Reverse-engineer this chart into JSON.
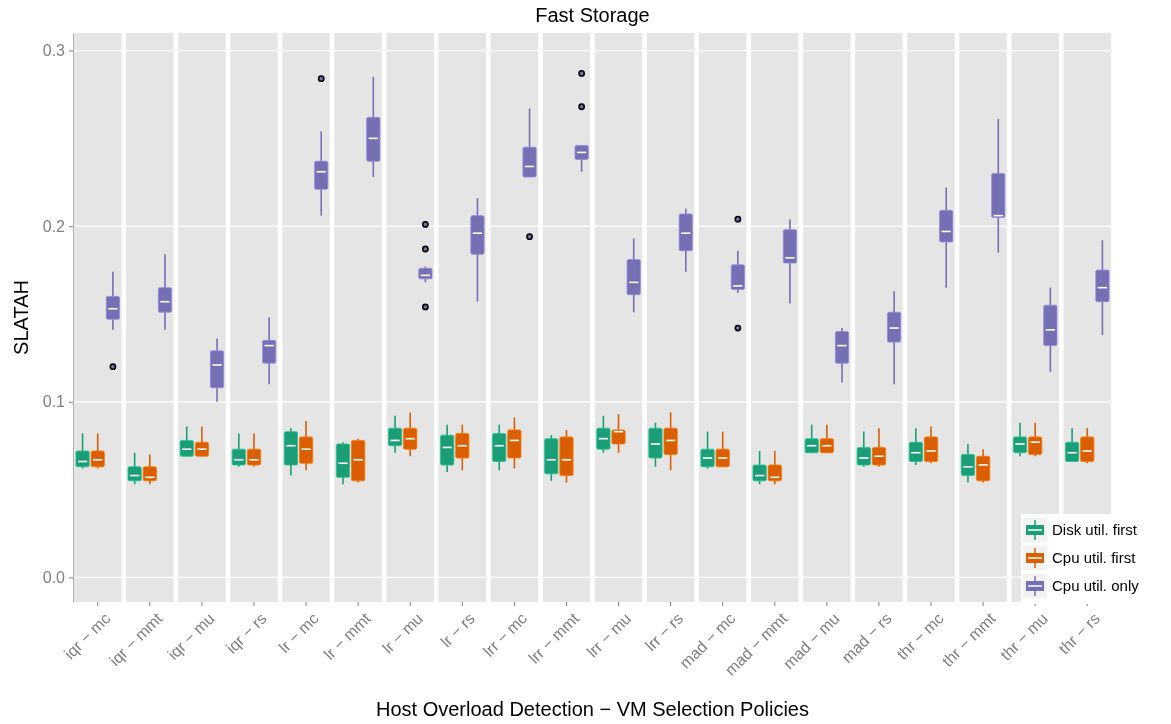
{
  "chart_data": {
    "type": "box",
    "title": "Fast Storage",
    "xlabel": "Host Overload Detection − VM Selection Policies",
    "ylabel": "SLATAH",
    "categories": [
      "iqr − mc",
      "iqr − mmt",
      "iqr − mu",
      "iqr − rs",
      "lr − mc",
      "lr − mmt",
      "lr − mu",
      "lr − rs",
      "lrr − mc",
      "lrr − mmt",
      "lrr − mu",
      "lrr − rs",
      "mad − mc",
      "mad − mmt",
      "mad − mu",
      "mad − rs",
      "thr − mc",
      "thr − mmt",
      "thr − mu",
      "thr − rs"
    ],
    "ylim": [
      -0.014,
      0.31
    ],
    "yticks": [
      {
        "value": 0,
        "label": "0.0"
      },
      {
        "value": 0.1,
        "label": "0.1"
      },
      {
        "value": 0.2,
        "label": "0.2"
      },
      {
        "value": 0.3,
        "label": "0.3"
      }
    ],
    "grid": "y",
    "legend": "bottom right",
    "series": [
      {
        "name": "Disk util. first",
        "color": "#1b9e77",
        "boxes": [
          {
            "low": 0.062,
            "q1": 0.063,
            "median": 0.066,
            "q3": 0.072,
            "high": 0.082
          },
          {
            "low": 0.053,
            "q1": 0.055,
            "median": 0.058,
            "q3": 0.063,
            "high": 0.071
          },
          {
            "low": 0.069,
            "q1": 0.069,
            "median": 0.073,
            "q3": 0.078,
            "high": 0.086
          },
          {
            "low": 0.063,
            "q1": 0.064,
            "median": 0.067,
            "q3": 0.073,
            "high": 0.082
          },
          {
            "low": 0.058,
            "q1": 0.064,
            "median": 0.075,
            "q3": 0.083,
            "high": 0.085
          },
          {
            "low": 0.053,
            "q1": 0.057,
            "median": 0.065,
            "q3": 0.076,
            "high": 0.077
          },
          {
            "low": 0.071,
            "q1": 0.075,
            "median": 0.078,
            "q3": 0.085,
            "high": 0.092
          },
          {
            "low": 0.06,
            "q1": 0.064,
            "median": 0.074,
            "q3": 0.081,
            "high": 0.087
          },
          {
            "low": 0.061,
            "q1": 0.066,
            "median": 0.075,
            "q3": 0.082,
            "high": 0.087
          },
          {
            "low": 0.055,
            "q1": 0.059,
            "median": 0.067,
            "q3": 0.079,
            "high": 0.081
          },
          {
            "low": 0.071,
            "q1": 0.073,
            "median": 0.079,
            "q3": 0.085,
            "high": 0.092
          },
          {
            "low": 0.063,
            "q1": 0.068,
            "median": 0.076,
            "q3": 0.085,
            "high": 0.088
          },
          {
            "low": 0.062,
            "q1": 0.063,
            "median": 0.068,
            "q3": 0.073,
            "high": 0.083
          },
          {
            "low": 0.053,
            "q1": 0.055,
            "median": 0.058,
            "q3": 0.064,
            "high": 0.072
          },
          {
            "low": 0.071,
            "q1": 0.071,
            "median": 0.075,
            "q3": 0.079,
            "high": 0.087
          },
          {
            "low": 0.063,
            "q1": 0.064,
            "median": 0.068,
            "q3": 0.074,
            "high": 0.083
          },
          {
            "low": 0.064,
            "q1": 0.066,
            "median": 0.071,
            "q3": 0.077,
            "high": 0.085
          },
          {
            "low": 0.054,
            "q1": 0.058,
            "median": 0.063,
            "q3": 0.07,
            "high": 0.076
          },
          {
            "low": 0.069,
            "q1": 0.071,
            "median": 0.076,
            "q3": 0.08,
            "high": 0.088
          },
          {
            "low": 0.066,
            "q1": 0.066,
            "median": 0.071,
            "q3": 0.077,
            "high": 0.085
          }
        ]
      },
      {
        "name": "Cpu util. first",
        "color": "#d95f02",
        "boxes": [
          {
            "low": 0.062,
            "q1": 0.063,
            "median": 0.067,
            "q3": 0.072,
            "high": 0.082
          },
          {
            "low": 0.053,
            "q1": 0.055,
            "median": 0.057,
            "q3": 0.063,
            "high": 0.07
          },
          {
            "low": 0.069,
            "q1": 0.069,
            "median": 0.073,
            "q3": 0.077,
            "high": 0.086
          },
          {
            "low": 0.063,
            "q1": 0.064,
            "median": 0.067,
            "q3": 0.073,
            "high": 0.082
          },
          {
            "low": 0.061,
            "q1": 0.065,
            "median": 0.073,
            "q3": 0.08,
            "high": 0.089
          },
          {
            "low": 0.054,
            "q1": 0.055,
            "median": 0.067,
            "q3": 0.078,
            "high": 0.079
          },
          {
            "low": 0.069,
            "q1": 0.073,
            "median": 0.079,
            "q3": 0.085,
            "high": 0.094
          },
          {
            "low": 0.061,
            "q1": 0.068,
            "median": 0.075,
            "q3": 0.082,
            "high": 0.087
          },
          {
            "low": 0.062,
            "q1": 0.068,
            "median": 0.078,
            "q3": 0.084,
            "high": 0.091
          },
          {
            "low": 0.054,
            "q1": 0.058,
            "median": 0.067,
            "q3": 0.08,
            "high": 0.084
          },
          {
            "low": 0.071,
            "q1": 0.076,
            "median": 0.083,
            "q3": 0.084,
            "high": 0.093
          },
          {
            "low": 0.061,
            "q1": 0.07,
            "median": 0.078,
            "q3": 0.085,
            "high": 0.094
          },
          {
            "low": 0.063,
            "q1": 0.063,
            "median": 0.068,
            "q3": 0.073,
            "high": 0.083
          },
          {
            "low": 0.053,
            "q1": 0.055,
            "median": 0.057,
            "q3": 0.064,
            "high": 0.072
          },
          {
            "low": 0.071,
            "q1": 0.071,
            "median": 0.075,
            "q3": 0.079,
            "high": 0.087
          },
          {
            "low": 0.063,
            "q1": 0.064,
            "median": 0.069,
            "q3": 0.074,
            "high": 0.085
          },
          {
            "low": 0.065,
            "q1": 0.066,
            "median": 0.072,
            "q3": 0.08,
            "high": 0.086
          },
          {
            "low": 0.054,
            "q1": 0.055,
            "median": 0.064,
            "q3": 0.069,
            "high": 0.073
          },
          {
            "low": 0.069,
            "q1": 0.07,
            "median": 0.077,
            "q3": 0.08,
            "high": 0.088
          },
          {
            "low": 0.065,
            "q1": 0.066,
            "median": 0.072,
            "q3": 0.08,
            "high": 0.085
          }
        ]
      },
      {
        "name": "Cpu util. only",
        "color": "#7570b3",
        "boxes": [
          {
            "low": 0.141,
            "q1": 0.147,
            "median": 0.153,
            "q3": 0.16,
            "high": 0.174,
            "outliers": [
              0.12
            ]
          },
          {
            "low": 0.141,
            "q1": 0.151,
            "median": 0.157,
            "q3": 0.165,
            "high": 0.184
          },
          {
            "low": 0.1,
            "q1": 0.108,
            "median": 0.121,
            "q3": 0.129,
            "high": 0.136
          },
          {
            "low": 0.11,
            "q1": 0.122,
            "median": 0.132,
            "q3": 0.135,
            "high": 0.148
          },
          {
            "low": 0.206,
            "q1": 0.221,
            "median": 0.231,
            "q3": 0.237,
            "high": 0.254,
            "outliers": [
              0.284
            ]
          },
          {
            "low": 0.228,
            "q1": 0.237,
            "median": 0.25,
            "q3": 0.262,
            "high": 0.285
          },
          {
            "low": 0.168,
            "q1": 0.17,
            "median": 0.172,
            "q3": 0.176,
            "high": 0.177,
            "outliers": [
              0.201,
              0.187,
              0.154
            ]
          },
          {
            "low": 0.157,
            "q1": 0.184,
            "median": 0.196,
            "q3": 0.206,
            "high": 0.216
          },
          {
            "low": 0.228,
            "q1": 0.228,
            "median": 0.234,
            "q3": 0.245,
            "high": 0.267,
            "outliers": [
              0.194
            ]
          },
          {
            "low": 0.231,
            "q1": 0.238,
            "median": 0.242,
            "q3": 0.246,
            "high": 0.246,
            "outliers": [
              0.287,
              0.268
            ]
          },
          {
            "low": 0.151,
            "q1": 0.161,
            "median": 0.168,
            "q3": 0.181,
            "high": 0.193
          },
          {
            "low": 0.174,
            "q1": 0.186,
            "median": 0.196,
            "q3": 0.207,
            "high": 0.21
          },
          {
            "low": 0.162,
            "q1": 0.164,
            "median": 0.166,
            "q3": 0.178,
            "high": 0.186,
            "outliers": [
              0.204,
              0.142
            ]
          },
          {
            "low": 0.156,
            "q1": 0.179,
            "median": 0.182,
            "q3": 0.198,
            "high": 0.204
          },
          {
            "low": 0.111,
            "q1": 0.122,
            "median": 0.132,
            "q3": 0.14,
            "high": 0.142
          },
          {
            "low": 0.11,
            "q1": 0.134,
            "median": 0.142,
            "q3": 0.151,
            "high": 0.163
          },
          {
            "low": 0.165,
            "q1": 0.191,
            "median": 0.197,
            "q3": 0.209,
            "high": 0.222
          },
          {
            "low": 0.185,
            "q1": 0.205,
            "median": 0.206,
            "q3": 0.23,
            "high": 0.261
          },
          {
            "low": 0.117,
            "q1": 0.132,
            "median": 0.141,
            "q3": 0.155,
            "high": 0.165
          },
          {
            "low": 0.138,
            "q1": 0.157,
            "median": 0.165,
            "q3": 0.175,
            "high": 0.192
          }
        ]
      }
    ]
  }
}
